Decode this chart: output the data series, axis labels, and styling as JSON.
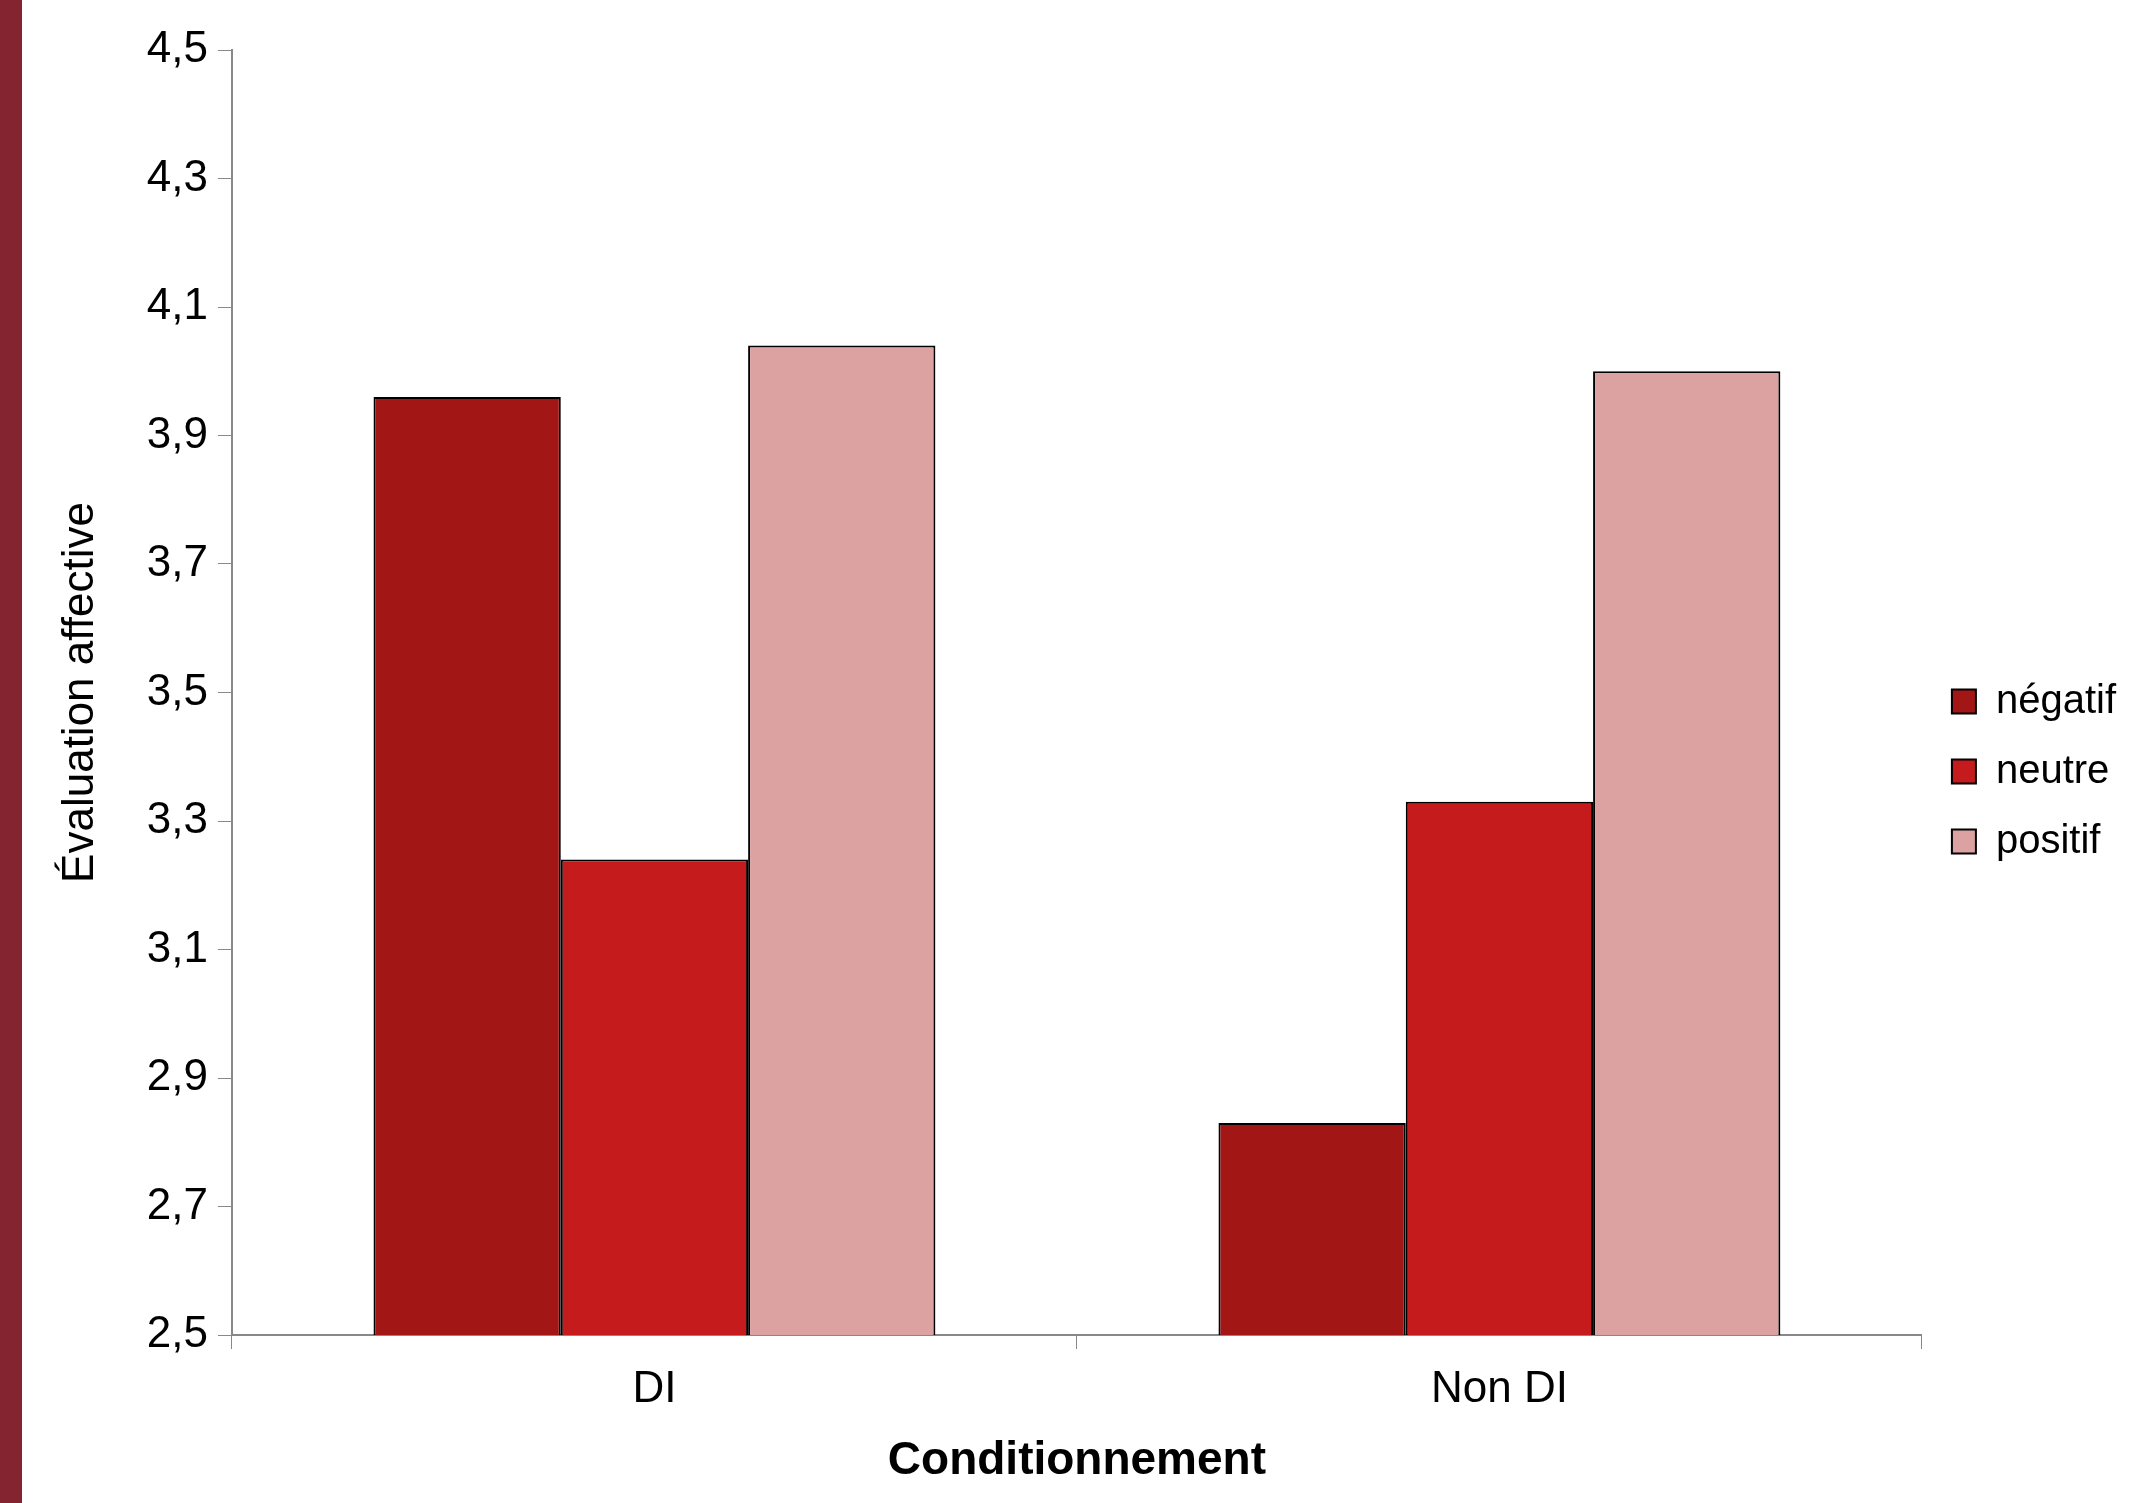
{
  "chart_data": {
    "type": "bar",
    "xlabel": "Conditionnement",
    "ylabel": "Évaluation affective",
    "categories": [
      "DI",
      "Non DI"
    ],
    "series": [
      {
        "name": "négatif",
        "color": "#a31616",
        "values": [
          3.96,
          2.83
        ]
      },
      {
        "name": "neutre",
        "color": "#c51b1d",
        "values": [
          3.24,
          3.33
        ]
      },
      {
        "name": "positif",
        "color": "#dca2a2",
        "values": [
          4.04,
          4.0
        ]
      }
    ],
    "ylim": [
      2.5,
      4.5
    ],
    "yticks": [
      {
        "value": 2.5,
        "label": "2,5"
      },
      {
        "value": 2.7,
        "label": "2,7"
      },
      {
        "value": 2.9,
        "label": "2,9"
      },
      {
        "value": 3.1,
        "label": "3,1"
      },
      {
        "value": 3.3,
        "label": "3,3"
      },
      {
        "value": 3.5,
        "label": "3,5"
      },
      {
        "value": 3.7,
        "label": "3,7"
      },
      {
        "value": 3.9,
        "label": "3,9"
      },
      {
        "value": 4.1,
        "label": "4,1"
      },
      {
        "value": 4.3,
        "label": "4,3"
      },
      {
        "value": 4.5,
        "label": "4,5"
      }
    ],
    "legend": "right"
  }
}
